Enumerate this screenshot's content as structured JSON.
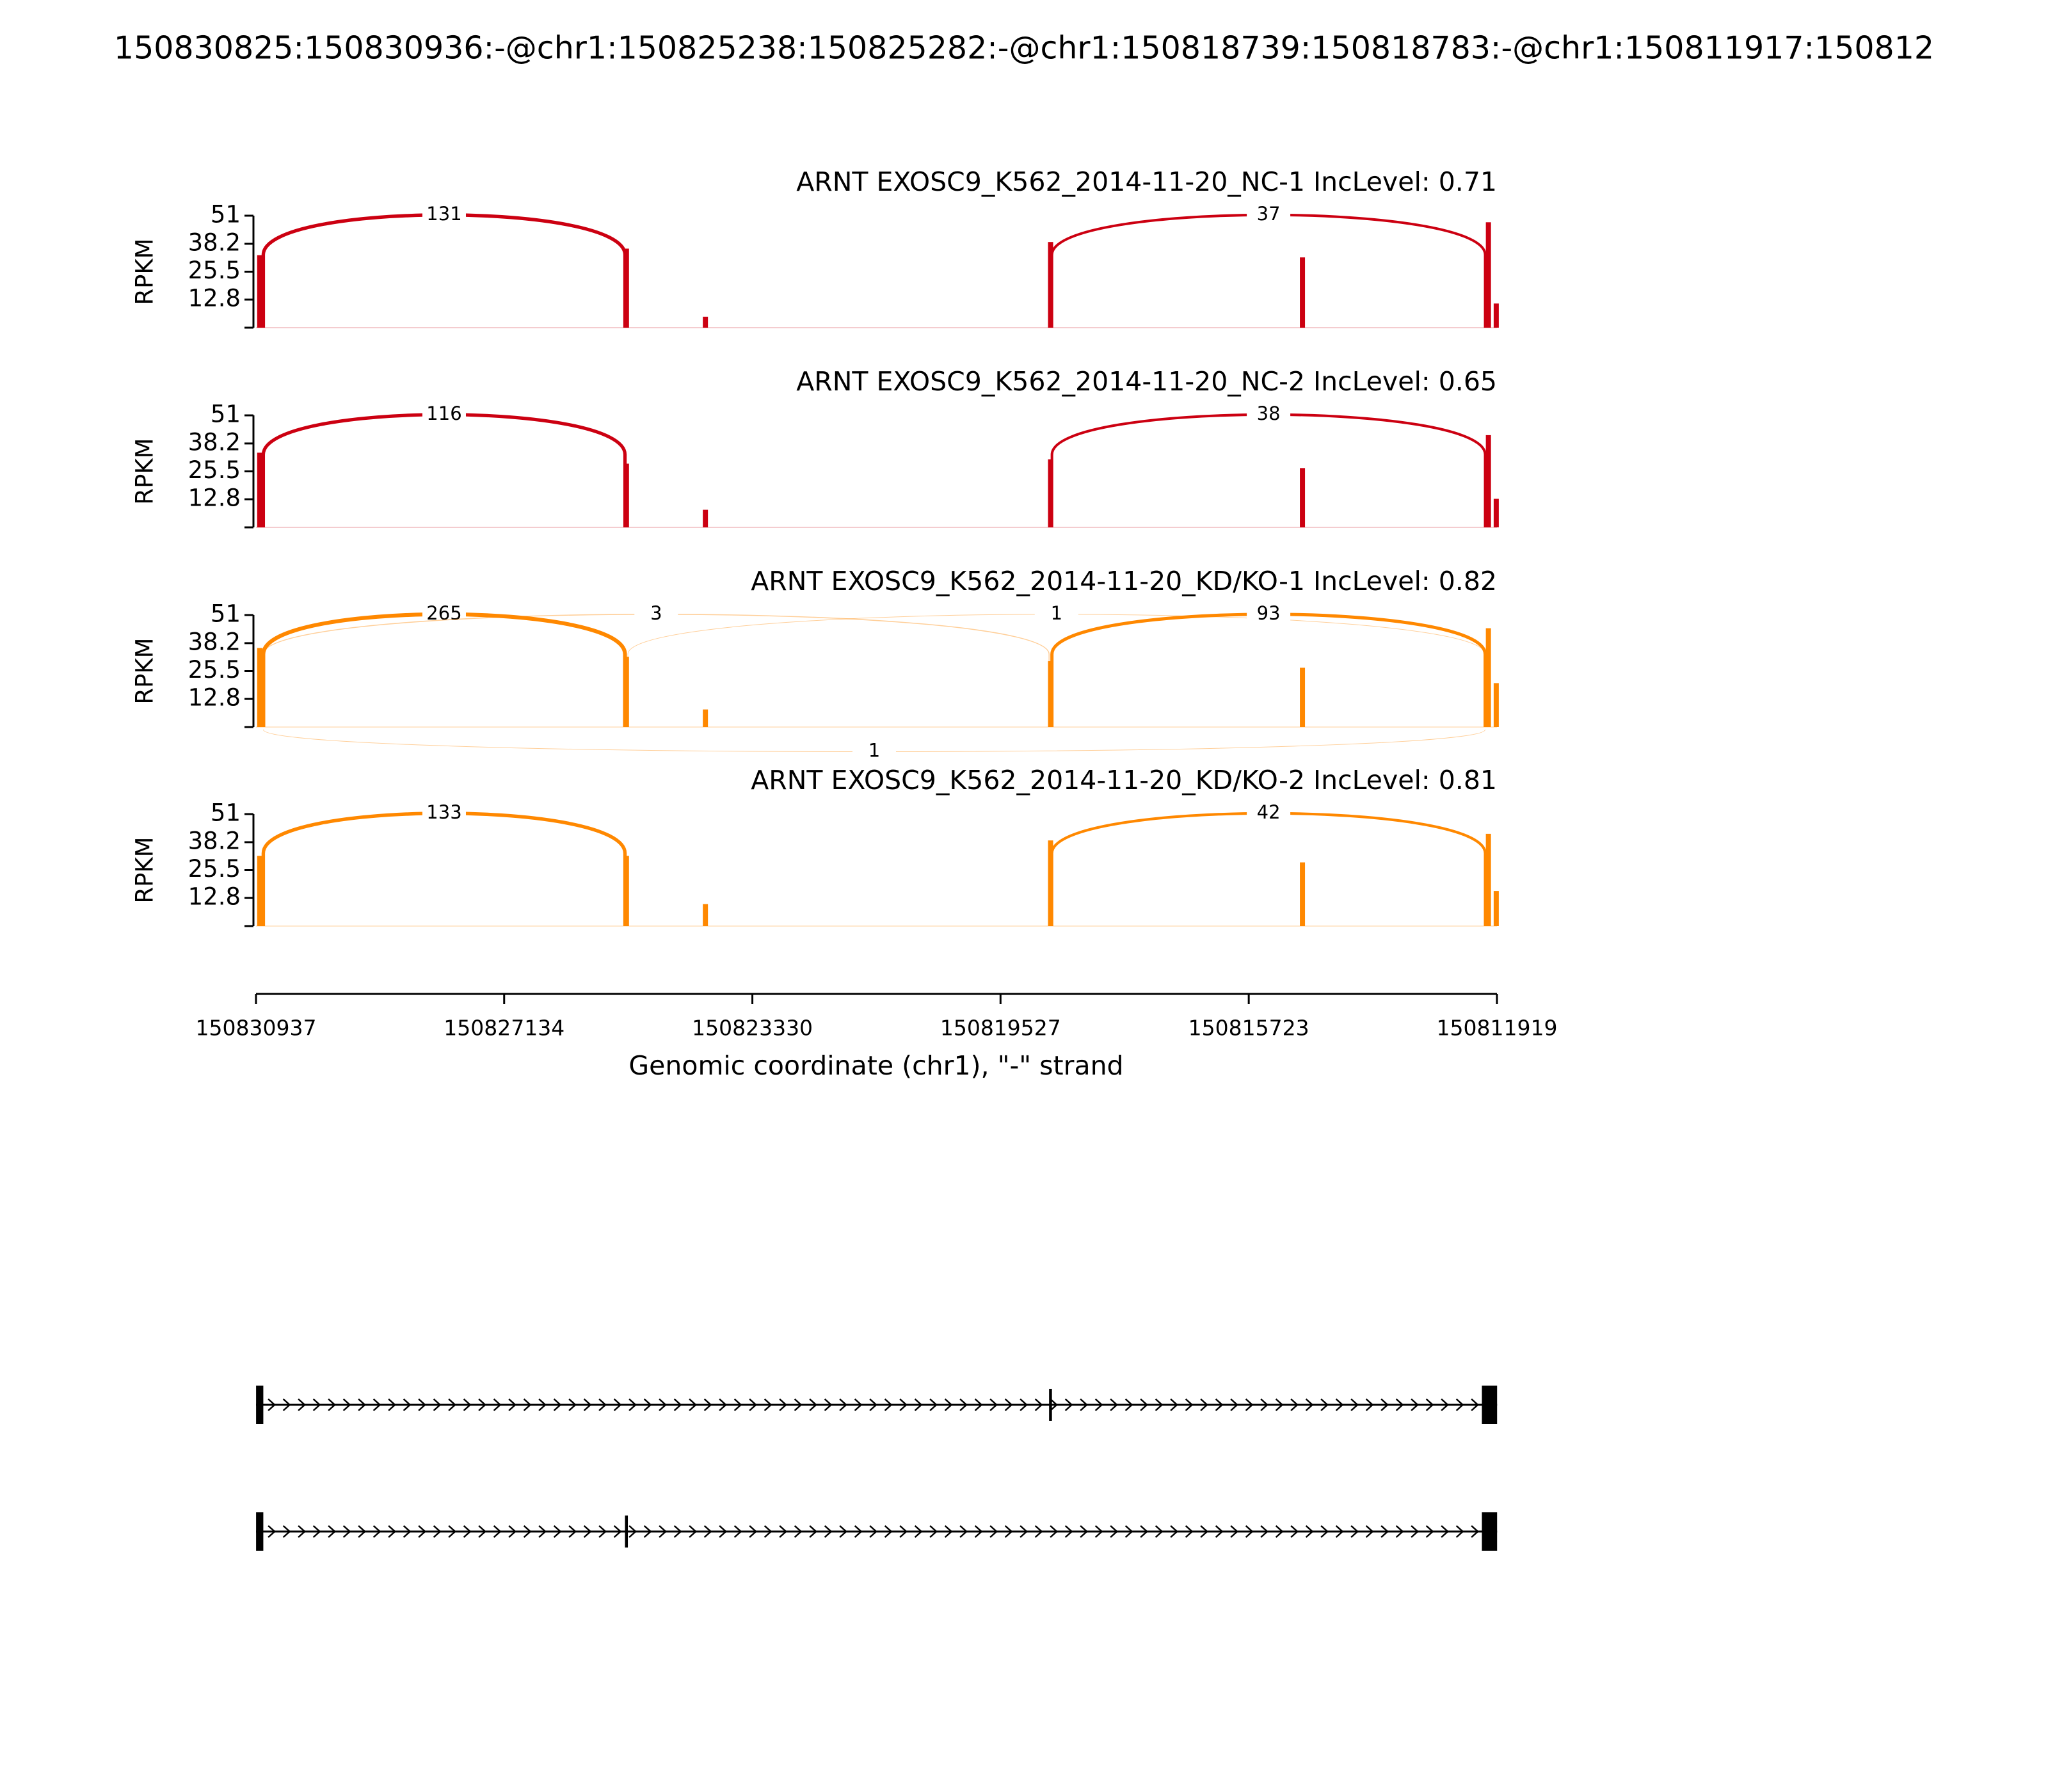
{
  "chart_data": {
    "type": "sashimi",
    "title": "150830825:150830936:-@chr1:150825238:150825282:-@chr1:150818739:150818783:-@chr1:150811917:150812",
    "xlabel": "Genomic coordinate (chr1), \"-\" strand",
    "ylabel": "RPKM",
    "xlim": [
      150830937,
      150811919
    ],
    "xticks": [
      150830937,
      150827134,
      150823330,
      150819527,
      150815723,
      150811919
    ],
    "ylim": [
      0,
      51
    ],
    "yticks": [
      12.8,
      25.5,
      38.2,
      51
    ],
    "tracks": [
      {
        "name": "ARNT EXOSC9_K562_2014-11-20_NC-1 IncLevel: 0.71",
        "color": "#cc0011",
        "coverage": {
          "x": [
            150830880,
            150824050,
            150825260,
            150818760,
            150814900,
            150812050,
            150811930
          ],
          "values": [
            33,
            5,
            36,
            39,
            32,
            48,
            11
          ]
        },
        "junctions": [
          {
            "start": 150830825,
            "end": 150825282,
            "count": 131,
            "side": "above"
          },
          {
            "start": 150818739,
            "end": 150812100,
            "count": 37,
            "side": "above"
          }
        ]
      },
      {
        "name": "ARNT EXOSC9_K562_2014-11-20_NC-2 IncLevel: 0.65",
        "color": "#cc0011",
        "coverage": {
          "x": [
            150830880,
            150824050,
            150825260,
            150818760,
            150814900,
            150812050,
            150811930
          ],
          "values": [
            34,
            8,
            29,
            31,
            27,
            42,
            13
          ]
        },
        "junctions": [
          {
            "start": 150830825,
            "end": 150825282,
            "count": 116,
            "side": "above"
          },
          {
            "start": 150818739,
            "end": 150812100,
            "count": 38,
            "side": "above"
          }
        ]
      },
      {
        "name": "ARNT EXOSC9_K562_2014-11-20_KD/KO-1 IncLevel: 0.82",
        "color": "#ff8800",
        "coverage": {
          "x": [
            150830880,
            150824050,
            150825260,
            150818760,
            150814900,
            150812050,
            150811930
          ],
          "values": [
            36,
            8,
            32,
            30,
            27,
            45,
            20
          ]
        },
        "junctions": [
          {
            "start": 150830825,
            "end": 150825282,
            "count": 265,
            "side": "above"
          },
          {
            "start": 150830825,
            "end": 150818783,
            "count": 3,
            "side": "above"
          },
          {
            "start": 150825238,
            "end": 150812100,
            "count": 1,
            "side": "above"
          },
          {
            "start": 150818739,
            "end": 150812100,
            "count": 93,
            "side": "above"
          },
          {
            "start": 150830825,
            "end": 150812100,
            "count": 1,
            "side": "below"
          }
        ]
      },
      {
        "name": "ARNT EXOSC9_K562_2014-11-20_KD/KO-2 IncLevel: 0.81",
        "color": "#ff8800",
        "coverage": {
          "x": [
            150830880,
            150824050,
            150825260,
            150818760,
            150814900,
            150812050,
            150811930
          ],
          "values": [
            32,
            10,
            32,
            39,
            29,
            42,
            16
          ]
        },
        "junctions": [
          {
            "start": 150830825,
            "end": 150825282,
            "count": 133,
            "side": "above"
          },
          {
            "start": 150818739,
            "end": 150812100,
            "count": 42,
            "side": "above"
          }
        ]
      }
    ],
    "transcripts": [
      {
        "exons": [
          [
            150830936,
            150830825
          ],
          [
            150818783,
            150818739
          ],
          [
            150812150,
            150811917
          ]
        ]
      },
      {
        "exons": [
          [
            150830936,
            150830825
          ],
          [
            150825282,
            150825238
          ],
          [
            150812150,
            150811917
          ]
        ]
      }
    ]
  }
}
